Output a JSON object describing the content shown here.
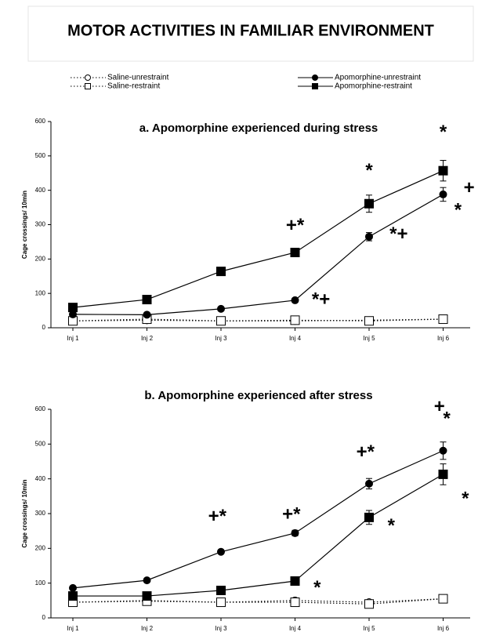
{
  "header": {
    "title": "MOTOR ACTIVITIES IN FAMILIAR ENVIRONMENT"
  },
  "chart_data": [
    {
      "type": "line",
      "title": "a. Apomorphine experienced during stress",
      "y_label": "Cage crossings/ 10min",
      "categories": [
        "Inj 1",
        "Inj 2",
        "Inj 3",
        "Inj 4",
        "Inj 5",
        "Inj 6"
      ],
      "ylim": [
        0,
        600
      ],
      "yticks": [
        0,
        100,
        200,
        300,
        400,
        500,
        600
      ],
      "series": [
        {
          "name": "Saline-unrestraint",
          "color": "#000000",
          "line_style": "dotted",
          "marker": "circle",
          "filled": false,
          "values": [
            20,
            22,
            20,
            20,
            22,
            25
          ]
        },
        {
          "name": "Saline-restraint",
          "color": "#000000",
          "line_style": "dotted",
          "marker": "square",
          "filled": false,
          "values": [
            20,
            25,
            20,
            22,
            20,
            25
          ]
        },
        {
          "name": "Apomorphine-unrestraint",
          "color": "#000000",
          "line_style": "solid",
          "marker": "circle",
          "filled": true,
          "values": [
            39,
            38,
            55,
            80,
            265,
            388
          ],
          "errors": [
            4,
            4,
            5,
            5,
            12,
            20
          ]
        },
        {
          "name": "Apomorphine-restraint",
          "color": "#000000",
          "line_style": "solid",
          "marker": "square",
          "filled": true,
          "values": [
            59,
            82,
            164,
            219,
            361,
            457
          ],
          "errors": [
            5,
            5,
            8,
            10,
            25,
            30
          ]
        }
      ],
      "annotations": [
        {
          "text": "*",
          "x": 5,
          "y": 566
        },
        {
          "text": "+",
          "x": 5.35,
          "y": 405
        },
        {
          "text": "*",
          "x": 5.2,
          "y": 340
        },
        {
          "text": "*",
          "x": 4,
          "y": 455
        },
        {
          "text": "*+",
          "x": 4.4,
          "y": 270
        },
        {
          "text": "+*",
          "x": 3,
          "y": 295
        },
        {
          "text": "*+",
          "x": 3.35,
          "y": 80
        }
      ]
    },
    {
      "type": "line",
      "title": "b. Apomorphine experienced after stress",
      "y_label": "Cage crossings/ 10min",
      "categories": [
        "Inj 1",
        "Inj 2",
        "Inj 3",
        "Inj 4",
        "Inj 5",
        "Inj 6"
      ],
      "ylim": [
        0,
        600
      ],
      "yticks": [
        0,
        100,
        200,
        300,
        400,
        500,
        600
      ],
      "series": [
        {
          "name": "Saline-unrestraint",
          "color": "#000000",
          "line_style": "dotted",
          "marker": "circle",
          "filled": false,
          "values": [
            45,
            50,
            45,
            50,
            45,
            55
          ]
        },
        {
          "name": "Saline-restraint",
          "color": "#000000",
          "line_style": "dotted",
          "marker": "square",
          "filled": false,
          "values": [
            45,
            48,
            45,
            45,
            40,
            55
          ]
        },
        {
          "name": "Apomorphine-unrestraint",
          "color": "#000000",
          "line_style": "solid",
          "marker": "circle",
          "filled": true,
          "values": [
            86,
            108,
            190,
            244,
            386,
            481
          ],
          "errors": [
            5,
            5,
            6,
            8,
            15,
            25
          ]
        },
        {
          "name": "Apomorphine-restraint",
          "color": "#000000",
          "line_style": "solid",
          "marker": "square",
          "filled": true,
          "values": [
            63,
            63,
            79,
            106,
            289,
            413
          ],
          "errors": [
            5,
            5,
            5,
            6,
            20,
            30
          ]
        }
      ],
      "annotations": [
        {
          "text": "+",
          "x": 4.95,
          "y": 605
        },
        {
          "text": "*",
          "x": 5.05,
          "y": 570
        },
        {
          "text": "*",
          "x": 5.3,
          "y": 340
        },
        {
          "text": "+*",
          "x": 3.95,
          "y": 475
        },
        {
          "text": "*",
          "x": 4.3,
          "y": 262
        },
        {
          "text": "+*",
          "x": 2.95,
          "y": 295
        },
        {
          "text": "+*",
          "x": 1.95,
          "y": 290
        },
        {
          "text": "*",
          "x": 3.3,
          "y": 84
        }
      ]
    }
  ]
}
